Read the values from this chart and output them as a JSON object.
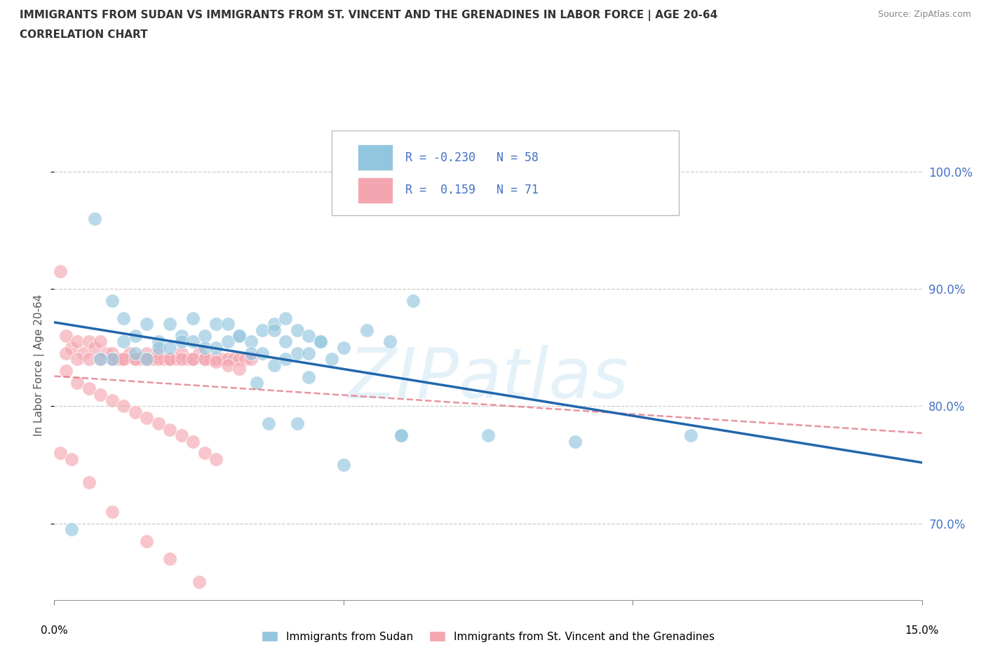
{
  "title_line1": "IMMIGRANTS FROM SUDAN VS IMMIGRANTS FROM ST. VINCENT AND THE GRENADINES IN LABOR FORCE | AGE 20-64",
  "title_line2": "CORRELATION CHART",
  "source": "Source: ZipAtlas.com",
  "ylabel": "In Labor Force | Age 20-64",
  "ytick_labels": [
    "100.0%",
    "90.0%",
    "80.0%",
    "70.0%"
  ],
  "ytick_values": [
    1.0,
    0.9,
    0.8,
    0.7
  ],
  "xlim": [
    0.0,
    0.15
  ],
  "ylim": [
    0.635,
    1.035
  ],
  "r_sudan": -0.23,
  "n_sudan": 58,
  "r_svg": 0.159,
  "n_svg": 71,
  "legend1_label": "Immigrants from Sudan",
  "legend2_label": "Immigrants from St. Vincent and the Grenadines",
  "color_sudan": "#92c5de",
  "color_svg": "#f4a6b0",
  "color_sudan_line": "#2166ac",
  "color_svg_line": "#e07080",
  "watermark": "ZIPatlas",
  "sudan_x": [
    0.003,
    0.007,
    0.01,
    0.012,
    0.014,
    0.016,
    0.018,
    0.02,
    0.022,
    0.024,
    0.026,
    0.028,
    0.03,
    0.032,
    0.034,
    0.036,
    0.038,
    0.04,
    0.042,
    0.044,
    0.046,
    0.05,
    0.054,
    0.058,
    0.062,
    0.01,
    0.014,
    0.018,
    0.022,
    0.026,
    0.03,
    0.034,
    0.038,
    0.042,
    0.046,
    0.008,
    0.012,
    0.016,
    0.02,
    0.024,
    0.028,
    0.032,
    0.036,
    0.04,
    0.044,
    0.035,
    0.038,
    0.04,
    0.044,
    0.048,
    0.06,
    0.075,
    0.09,
    0.11,
    0.037,
    0.042,
    0.05,
    0.06
  ],
  "sudan_y": [
    0.695,
    0.96,
    0.89,
    0.875,
    0.86,
    0.87,
    0.855,
    0.87,
    0.86,
    0.875,
    0.86,
    0.87,
    0.87,
    0.86,
    0.855,
    0.865,
    0.87,
    0.875,
    0.865,
    0.86,
    0.855,
    0.85,
    0.865,
    0.855,
    0.89,
    0.84,
    0.845,
    0.85,
    0.855,
    0.85,
    0.855,
    0.845,
    0.865,
    0.845,
    0.855,
    0.84,
    0.855,
    0.84,
    0.85,
    0.855,
    0.85,
    0.86,
    0.845,
    0.855,
    0.845,
    0.82,
    0.835,
    0.84,
    0.825,
    0.84,
    0.775,
    0.775,
    0.77,
    0.775,
    0.785,
    0.785,
    0.75,
    0.775
  ],
  "svg_x": [
    0.001,
    0.002,
    0.003,
    0.004,
    0.005,
    0.006,
    0.007,
    0.008,
    0.009,
    0.01,
    0.011,
    0.012,
    0.013,
    0.014,
    0.015,
    0.016,
    0.017,
    0.018,
    0.019,
    0.02,
    0.021,
    0.022,
    0.023,
    0.024,
    0.025,
    0.026,
    0.027,
    0.028,
    0.029,
    0.03,
    0.031,
    0.032,
    0.033,
    0.034,
    0.002,
    0.004,
    0.006,
    0.008,
    0.01,
    0.012,
    0.014,
    0.016,
    0.018,
    0.02,
    0.022,
    0.024,
    0.026,
    0.028,
    0.03,
    0.032,
    0.002,
    0.004,
    0.006,
    0.008,
    0.01,
    0.012,
    0.014,
    0.016,
    0.018,
    0.02,
    0.022,
    0.024,
    0.026,
    0.028,
    0.001,
    0.003,
    0.006,
    0.01,
    0.016,
    0.02,
    0.025
  ],
  "svg_y": [
    0.915,
    0.86,
    0.85,
    0.855,
    0.845,
    0.855,
    0.85,
    0.855,
    0.845,
    0.845,
    0.84,
    0.84,
    0.845,
    0.84,
    0.84,
    0.845,
    0.84,
    0.845,
    0.84,
    0.84,
    0.84,
    0.845,
    0.84,
    0.84,
    0.845,
    0.84,
    0.84,
    0.84,
    0.84,
    0.84,
    0.84,
    0.84,
    0.84,
    0.84,
    0.845,
    0.84,
    0.84,
    0.84,
    0.84,
    0.84,
    0.84,
    0.84,
    0.84,
    0.84,
    0.84,
    0.84,
    0.84,
    0.838,
    0.835,
    0.832,
    0.83,
    0.82,
    0.815,
    0.81,
    0.805,
    0.8,
    0.795,
    0.79,
    0.785,
    0.78,
    0.775,
    0.77,
    0.76,
    0.755,
    0.76,
    0.755,
    0.735,
    0.71,
    0.685,
    0.67,
    0.65
  ]
}
